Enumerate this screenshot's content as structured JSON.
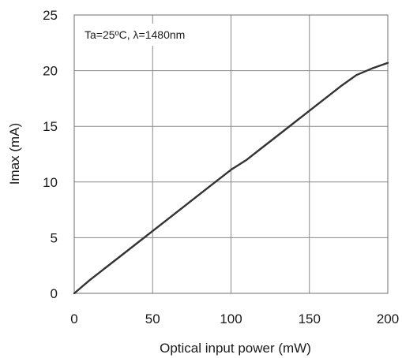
{
  "chart_data": {
    "type": "line",
    "xlabel": "Optical input power  (mW)",
    "ylabel": "Imax  (mA)",
    "annotation": "Ta=25ºC, λ=1480nm",
    "xlim": [
      0,
      200
    ],
    "ylim": [
      0,
      25
    ],
    "xticks": [
      0,
      50,
      100,
      150,
      200
    ],
    "xtick_labels": [
      "0",
      "50",
      "100",
      "150",
      "200"
    ],
    "yticks": [
      0,
      5,
      10,
      15,
      20,
      25
    ],
    "ytick_labels": [
      "0",
      "5",
      "10",
      "15",
      "20",
      "25"
    ],
    "grid": true,
    "series": [
      {
        "color": "#333333",
        "x": [
          0,
          5,
          10,
          20,
          30,
          40,
          50,
          60,
          70,
          80,
          90,
          100,
          110,
          120,
          130,
          140,
          150,
          160,
          170,
          180,
          190,
          200
        ],
        "y": [
          0,
          0.6,
          1.2,
          2.3,
          3.4,
          4.5,
          5.6,
          6.7,
          7.8,
          8.9,
          10.0,
          11.1,
          12.0,
          13.1,
          14.2,
          15.3,
          16.4,
          17.5,
          18.6,
          19.6,
          20.2,
          20.7
        ]
      }
    ]
  }
}
